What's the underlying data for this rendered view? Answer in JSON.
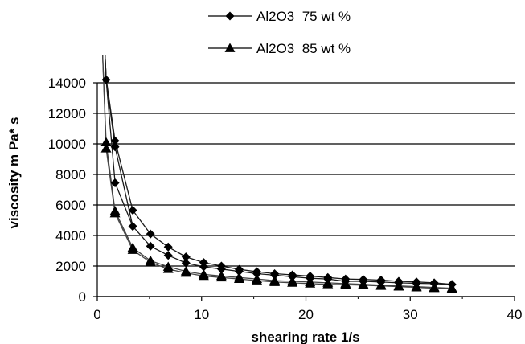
{
  "chart_data": {
    "type": "line",
    "title": "",
    "xlabel": "shearing rate 1/s",
    "ylabel": "viscosity m Pa* s",
    "xlim": [
      0,
      40
    ],
    "ylim": [
      0,
      14000
    ],
    "xticks": [
      0,
      10,
      20,
      30,
      40
    ],
    "yticks": [
      0,
      2000,
      4000,
      6000,
      8000,
      10000,
      12000,
      14000
    ],
    "grid": "horizontal",
    "legend_position": "top",
    "series": [
      {
        "name": "Al2O3  75 wt %",
        "marker": "diamond",
        "color": "#000000",
        "curves": [
          {
            "x": [
              0.6,
              0.85,
              1.7,
              3.4,
              5.1,
              6.8,
              8.5,
              10.2,
              11.9,
              13.6,
              15.3,
              17.0,
              18.7,
              20.4,
              22.1,
              23.8,
              25.5,
              27.2,
              28.9,
              30.6,
              32.3,
              34.0
            ],
            "y": [
              18000,
              14300,
              10200,
              5650,
              4100,
              3250,
              2600,
              2230,
              2000,
              1780,
              1630,
              1500,
              1420,
              1340,
              1250,
              1150,
              1120,
              1080,
              1000,
              960,
              900,
              800
            ]
          },
          {
            "x": [
              0.6,
              0.85,
              1.7,
              3.4,
              5.1,
              6.8,
              8.5,
              10.2,
              11.9,
              13.6,
              15.3,
              17.0,
              18.7,
              20.4,
              22.1,
              23.8,
              25.5,
              27.2,
              28.9,
              30.6,
              32.3,
              34.0
            ],
            "y": [
              18000,
              14250,
              9800,
              4600,
              3300,
              2700,
              2200,
              1950,
              1800,
              1650,
              1500,
              1400,
              1300,
              1200,
              1150,
              1000,
              1000,
              950,
              900,
              870,
              850,
              780
            ]
          },
          {
            "x": [
              0.6,
              0.85,
              1.7,
              3.4
            ],
            "y": [
              18000,
              14200,
              7450,
              4600
            ]
          }
        ]
      },
      {
        "name": "Al2O3  85 wt %",
        "marker": "triangle",
        "color": "#000000",
        "curves": [
          {
            "x": [
              0.5,
              0.85,
              1.7,
              3.4,
              5.1,
              6.8,
              8.5,
              10.2,
              11.9,
              13.6,
              15.3,
              17.0,
              18.7,
              20.4,
              22.1,
              23.8,
              25.5,
              27.2,
              28.9,
              30.6,
              32.3,
              34.0
            ],
            "y": [
              16000,
              10100,
              5600,
              3200,
              2350,
              1950,
              1650,
              1450,
              1350,
              1250,
              1150,
              1050,
              1000,
              950,
              900,
              850,
              800,
              750,
              700,
              650,
              600,
              550
            ]
          },
          {
            "x": [
              0.5,
              0.85,
              1.7,
              3.4,
              5.1,
              6.8,
              8.5,
              10.2,
              11.9,
              13.6,
              15.3,
              17.0,
              18.7,
              20.4,
              22.1,
              23.8,
              25.5,
              27.2,
              28.9,
              30.6,
              32.3,
              34.0
            ],
            "y": [
              16000,
              9700,
              5450,
              3050,
              2250,
              1800,
              1550,
              1350,
              1250,
              1150,
              1050,
              950,
              900,
              850,
              800,
              780,
              750,
              700,
              650,
              600,
              550,
              500
            ]
          }
        ]
      }
    ]
  }
}
